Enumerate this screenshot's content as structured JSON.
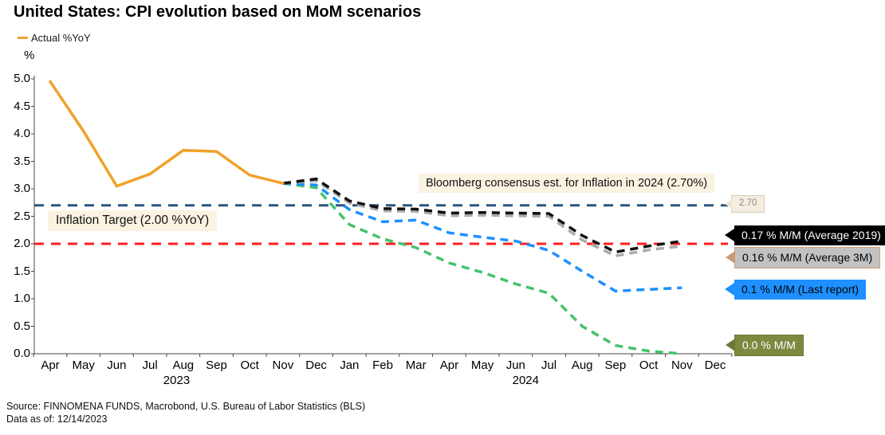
{
  "title": "United States: CPI evolution based on MoM scenarios",
  "legend": {
    "label": "Actual %YoY",
    "color": "#F0A22A"
  },
  "axis_unit": "%",
  "annotations": {
    "bloomberg": "Bloomberg consensus est. for Inflation in 2024 (2.70%)",
    "target": "Inflation Target (2.00 %YoY)"
  },
  "callouts": [
    {
      "text": "2.70",
      "bg": "#F4EDE0",
      "border": "#D9CDB8",
      "text_color": "#8C8C8C",
      "arrow": "#EFE6D4"
    },
    {
      "text": "0.17 % M/M (Average 2019)",
      "bg": "#000000",
      "border": "#000000",
      "text_color": "#FFFFFF",
      "arrow": "#000000"
    },
    {
      "text": "0.16 % M/M (Average 3M)",
      "bg": "#C2C2C2",
      "border": "#D2A077",
      "text_color": "#000000",
      "arrow": "#CE9A6F"
    },
    {
      "text": "0.1 % M/M (Last report)",
      "bg": "#1E90FF",
      "border": "#1E90FF",
      "text_color": "#000000",
      "arrow": "#1E90FF"
    },
    {
      "text": "0.0 % M/M",
      "bg": "#7C8A40",
      "border": "#6B7936",
      "text_color": "#FFFFFF",
      "arrow": "#6B7936"
    }
  ],
  "source": {
    "line1": "Source: FINNOMENA FUNDS, Macrobond, U.S. Bureau of Labor Statistics (BLS)",
    "line2": "Data as of: 12/14/2023"
  },
  "chart_data": {
    "type": "line",
    "title": "United States: CPI evolution based on MoM scenarios",
    "ylabel": "%",
    "ylim": [
      0.0,
      5.0
    ],
    "yticks": [
      "5.0",
      "4.5",
      "4.0",
      "3.5",
      "3.0",
      "2.5",
      "2.0",
      "1.5",
      "1.0",
      "0.5",
      "0.0"
    ],
    "x": [
      "Apr",
      "May",
      "Jun",
      "Jul",
      "Aug",
      "Sep",
      "Oct",
      "Nov",
      "Dec",
      "Jan",
      "Feb",
      "Mar",
      "Apr",
      "May",
      "Jun",
      "Jul",
      "Aug",
      "Sep",
      "Oct",
      "Nov",
      "Dec"
    ],
    "year_labels": [
      {
        "label": "2023",
        "at_month": 3.8
      },
      {
        "label": "2024",
        "at_month": 14.3
      }
    ],
    "grid": false,
    "legend_position": "top-left",
    "reference_lines": [
      {
        "name": "Bloomberg consensus est. for Inflation in 2024",
        "value": 2.7,
        "color": "#2E5380",
        "style": "dashed"
      },
      {
        "name": "Inflation Target",
        "value": 2.0,
        "color": "#FF1F1F",
        "style": "dashed"
      }
    ],
    "series": [
      {
        "name": "0.0 % M/M",
        "color": "#44C36B",
        "style": "dashed",
        "start_index": 7,
        "values": [
          3.1,
          3.02,
          2.35,
          2.09,
          1.93,
          1.65,
          1.48,
          1.27,
          1.1,
          0.5,
          0.15,
          0.05,
          0.0
        ]
      },
      {
        "name": "0.1 % M/M (Last report)",
        "color": "#1E90FF",
        "style": "dashed",
        "start_index": 7,
        "values": [
          3.1,
          3.07,
          2.62,
          2.4,
          2.43,
          2.2,
          2.12,
          2.05,
          1.88,
          1.5,
          1.14,
          1.17,
          1.2
        ]
      },
      {
        "name": "0.16 % M/M (Average 3M)",
        "color": "#ABABAB",
        "style": "dashed",
        "start_index": 7,
        "values": [
          3.1,
          3.15,
          2.74,
          2.6,
          2.59,
          2.51,
          2.52,
          2.51,
          2.5,
          2.07,
          1.78,
          1.89,
          1.96
        ]
      },
      {
        "name": "0.17 % M/M (Average 2019)",
        "color": "#111111",
        "style": "dashed",
        "start_index": 7,
        "values": [
          3.1,
          3.18,
          2.78,
          2.64,
          2.63,
          2.56,
          2.57,
          2.56,
          2.55,
          2.15,
          1.85,
          1.96,
          2.05
        ]
      },
      {
        "name": "Actual %YoY",
        "color": "#F0A22A",
        "style": "solid",
        "start_index": 0,
        "values": [
          4.95,
          4.05,
          3.05,
          3.27,
          3.7,
          3.68,
          3.25,
          3.1
        ]
      }
    ]
  }
}
